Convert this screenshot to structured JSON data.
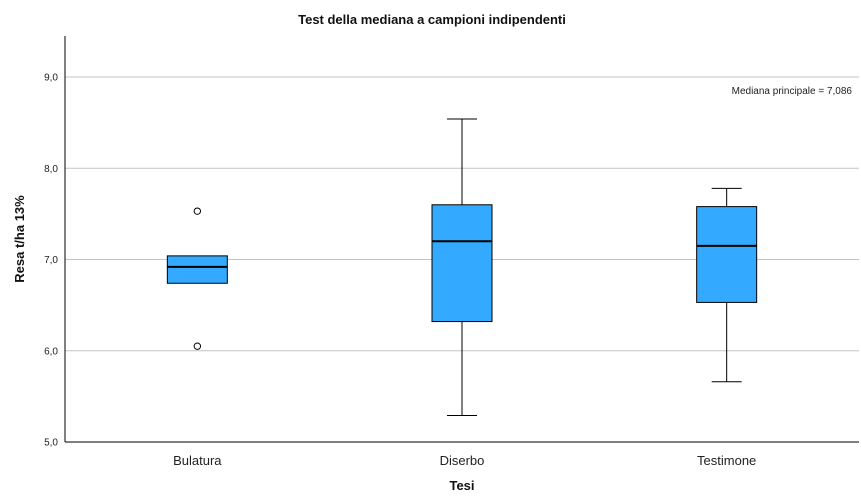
{
  "chart_data": {
    "type": "boxplot",
    "title": "Test della mediana a campioni indipendenti",
    "xlabel": "Tesi",
    "ylabel": "Resa t/ha 13%",
    "ylim": [
      5.0,
      9.45
    ],
    "yticks": [
      5.0,
      6.0,
      7.0,
      8.0,
      9.0
    ],
    "ytick_labels": [
      "5,0",
      "6,0",
      "7,0",
      "8,0",
      "9,0"
    ],
    "grid": true,
    "annotation": "Mediana principale = 7,086",
    "box_color": "#33aaff",
    "categories": [
      "Bulatura",
      "Diserbo",
      "Testimone"
    ],
    "boxes": [
      {
        "category": "Bulatura",
        "whisker_low": 6.74,
        "q1": 6.74,
        "median": 6.92,
        "q3": 7.04,
        "whisker_high": 7.04,
        "outliers": [
          7.53,
          6.05
        ]
      },
      {
        "category": "Diserbo",
        "whisker_low": 5.29,
        "q1": 6.32,
        "median": 7.2,
        "q3": 7.6,
        "whisker_high": 8.54,
        "outliers": []
      },
      {
        "category": "Testimone",
        "whisker_low": 5.66,
        "q1": 6.53,
        "median": 7.15,
        "q3": 7.58,
        "whisker_high": 7.78,
        "outliers": []
      }
    ]
  }
}
